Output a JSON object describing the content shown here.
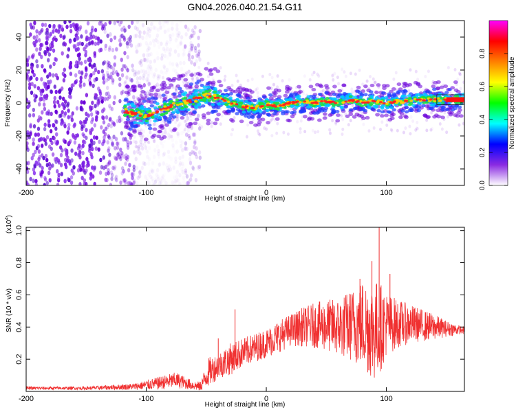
{
  "title": "GN04.2026.040.21.54.G11",
  "chart_data": [
    {
      "type": "heatmap",
      "name": "spectrogram",
      "xlabel": "Height of straight line (km)",
      "ylabel": "Frequency (Hz)",
      "xlim": [
        -200,
        165
      ],
      "ylim": [
        -50,
        50
      ],
      "xticks": [
        -200,
        -100,
        0,
        100
      ],
      "xtick_labels": [
        "-200",
        "-100",
        "0",
        "100"
      ],
      "yticks": [
        -40,
        -20,
        0,
        20,
        40
      ],
      "ytick_labels": [
        "-40",
        "-20",
        "0",
        "20",
        "40"
      ],
      "noise_region_km": [
        -200,
        -55
      ],
      "signal_start_km": -118,
      "ridge": {
        "x": [
          -118,
          -100,
          -90,
          -80,
          -70,
          -60,
          -50,
          -40,
          -30,
          -20,
          -10,
          0,
          10,
          20,
          30,
          40,
          50,
          60,
          70,
          80,
          90,
          100,
          110,
          120,
          130,
          140,
          150,
          165
        ],
        "freq": [
          -5,
          -8,
          -5,
          -2,
          0,
          2,
          5,
          3,
          0,
          -2,
          -3,
          -1,
          -2,
          0,
          1,
          0,
          1,
          0,
          2,
          0,
          1,
          0,
          1,
          1,
          2,
          2,
          2,
          2
        ]
      },
      "colorbar": {
        "label": "Normalized spectral amplitude",
        "range": [
          0,
          1
        ],
        "ticks": [
          0.0,
          0.2,
          0.4,
          0.6,
          0.8
        ],
        "tick_labels": [
          "0.0",
          "0.2",
          "0.4",
          "0.6",
          "0.8"
        ],
        "colors": [
          "#ffffff",
          "#8a2be2",
          "#0000ff",
          "#00ffff",
          "#00ff00",
          "#ffff00",
          "#ff8000",
          "#ff0000",
          "#ff00ff"
        ]
      }
    },
    {
      "type": "line",
      "name": "snr",
      "xlabel": "Height of straight line (km)",
      "ylabel": "SNR (10 * v/v)",
      "y_multiplier": "(x10",
      "y_multiplier_exp": "4",
      "y_multiplier_close": ")",
      "xlim": [
        -200,
        165
      ],
      "ylim": [
        0,
        1.02
      ],
      "xticks": [
        -200,
        -100,
        0,
        100
      ],
      "xtick_labels": [
        "-200",
        "-100",
        "0",
        "100"
      ],
      "yticks": [
        0.2,
        0.4,
        0.6,
        0.8,
        1.0
      ],
      "ytick_labels": [
        "0.2",
        "0.4",
        "0.6",
        "0.8",
        "1.0"
      ],
      "color": "#f03030",
      "envelope": {
        "x": [
          -200,
          -150,
          -110,
          -90,
          -75,
          -62,
          -55,
          -48,
          -40,
          -30,
          -20,
          -10,
          0,
          10,
          20,
          30,
          40,
          50,
          60,
          70,
          80,
          85,
          90,
          95,
          100,
          110,
          120,
          130,
          140,
          150,
          165
        ],
        "mean": [
          0.02,
          0.02,
          0.03,
          0.05,
          0.07,
          0.04,
          0.03,
          0.12,
          0.16,
          0.2,
          0.24,
          0.27,
          0.3,
          0.34,
          0.38,
          0.4,
          0.41,
          0.41,
          0.4,
          0.41,
          0.42,
          0.4,
          0.38,
          0.4,
          0.42,
          0.42,
          0.42,
          0.41,
          0.4,
          0.39,
          0.38
        ],
        "spread": [
          0.01,
          0.01,
          0.02,
          0.04,
          0.05,
          0.03,
          0.03,
          0.09,
          0.08,
          0.1,
          0.09,
          0.09,
          0.09,
          0.1,
          0.1,
          0.12,
          0.14,
          0.16,
          0.18,
          0.22,
          0.28,
          0.3,
          0.32,
          0.28,
          0.2,
          0.15,
          0.12,
          0.1,
          0.08,
          0.05,
          0.02
        ]
      },
      "peaks": [
        {
          "x": -26,
          "y": 0.51
        },
        {
          "x": -40,
          "y": 0.33
        },
        {
          "x": 78,
          "y": 0.7
        },
        {
          "x": 88,
          "y": 0.81
        },
        {
          "x": 94,
          "y": 1.02
        },
        {
          "x": 103,
          "y": 0.73
        }
      ]
    }
  ]
}
